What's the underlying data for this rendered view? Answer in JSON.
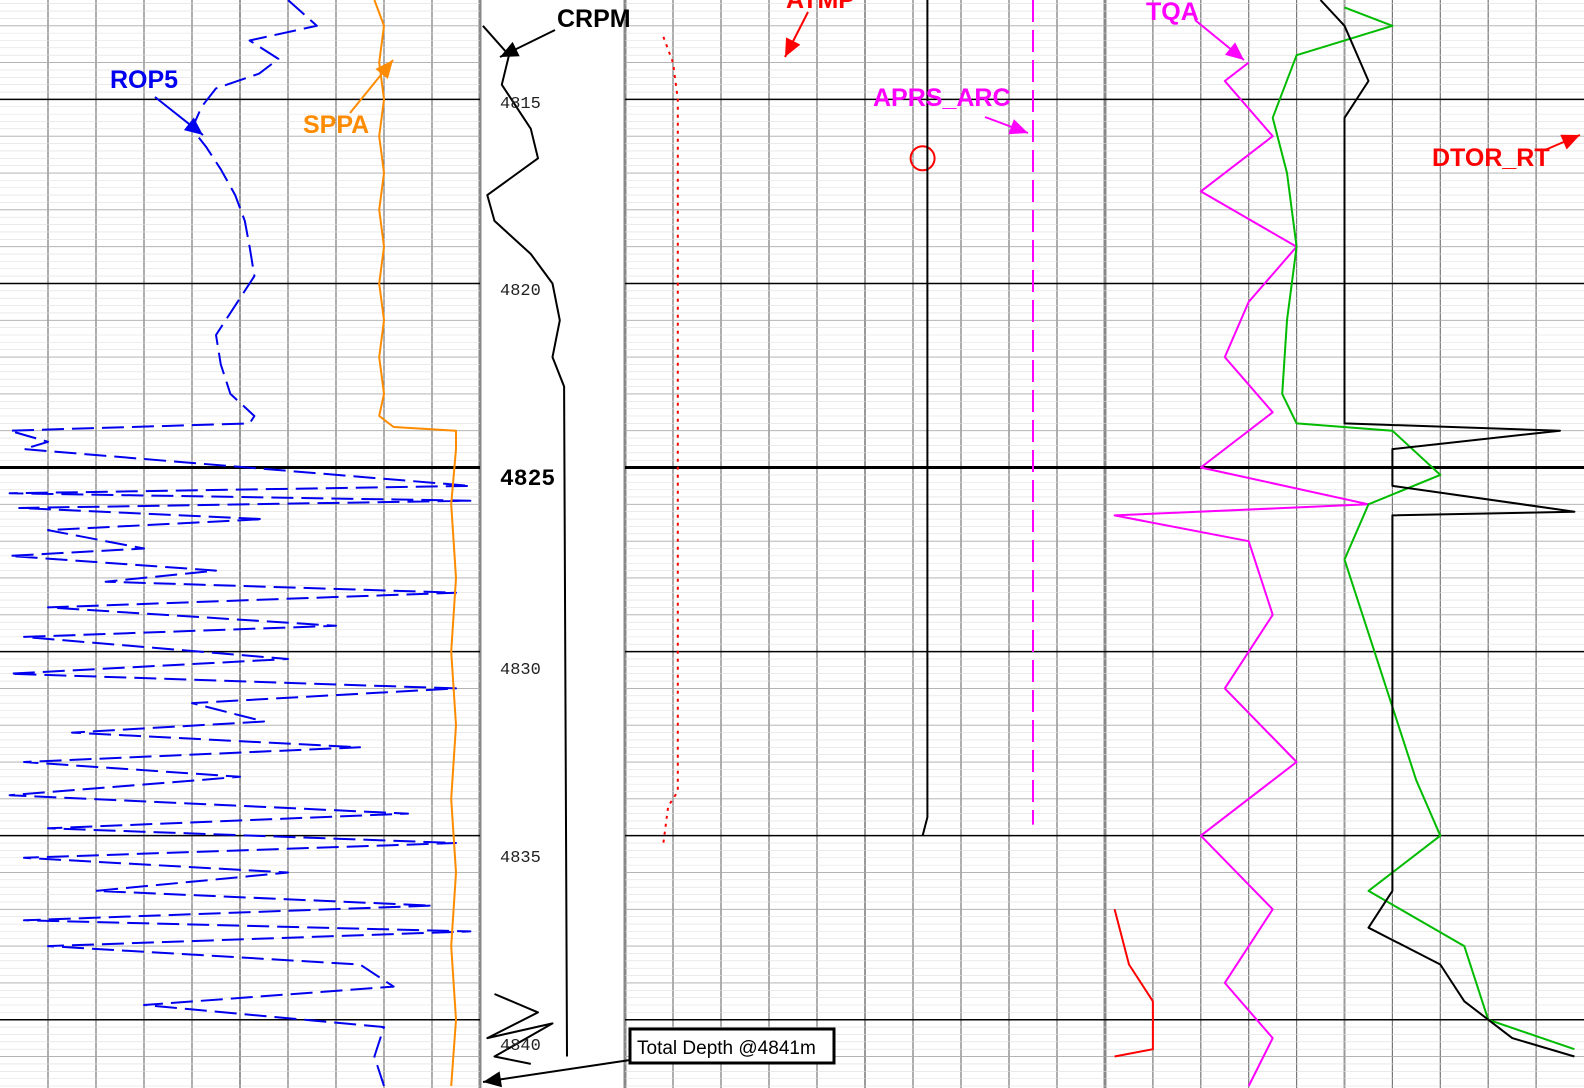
{
  "chart_data": {
    "type": "line",
    "title": "",
    "y_axis": {
      "quantity": "depth",
      "unit": "m",
      "range": [
        4812.3,
        4841.8
      ],
      "tick_labels": [
        "4815",
        "4820",
        "4825",
        "4830",
        "4835",
        "4840"
      ],
      "major_tick": "4825"
    },
    "grid": true,
    "colors": {
      "CRPM": "#000000",
      "ATMP": "#ff0000",
      "APRS_ARC": "#ff00ff",
      "TQA": "#ff00ff",
      "DTOR_RT": "#ff0000",
      "ROP5": "#0000ee",
      "SPPA": "#ff8c00"
    },
    "curve_labels": [
      "ROP5",
      "SPPA",
      "CRPM",
      "ATMP",
      "APRS_ARC",
      "TQA",
      "DTOR_RT"
    ],
    "annotation": {
      "text": "Total Depth @4841m",
      "depth": 4841
    },
    "series": [
      {
        "name": "ROP5",
        "track": 1,
        "style": "dashed",
        "points": [
          [
            0.6,
            4812.3
          ],
          [
            0.66,
            4813.0
          ],
          [
            0.52,
            4813.4
          ],
          [
            0.58,
            4813.9
          ],
          [
            0.54,
            4814.3
          ],
          [
            0.45,
            4814.7
          ],
          [
            0.42,
            4815.2
          ],
          [
            0.4,
            4815.8
          ],
          [
            0.43,
            4816.3
          ],
          [
            0.46,
            4816.9
          ],
          [
            0.49,
            4817.6
          ],
          [
            0.51,
            4818.3
          ],
          [
            0.52,
            4819.0
          ],
          [
            0.53,
            4819.8
          ],
          [
            0.49,
            4820.6
          ],
          [
            0.45,
            4821.4
          ],
          [
            0.46,
            4822.2
          ],
          [
            0.48,
            4823.0
          ],
          [
            0.53,
            4823.6
          ],
          [
            0.52,
            4823.8
          ],
          [
            0.02,
            4824.0
          ],
          [
            0.1,
            4824.3
          ],
          [
            0.05,
            4824.5
          ],
          [
            0.98,
            4825.5
          ],
          [
            0.02,
            4825.7
          ],
          [
            0.98,
            4825.9
          ],
          [
            0.04,
            4826.1
          ],
          [
            0.55,
            4826.4
          ],
          [
            0.1,
            4826.7
          ],
          [
            0.3,
            4827.2
          ],
          [
            0.02,
            4827.4
          ],
          [
            0.45,
            4827.8
          ],
          [
            0.22,
            4828.1
          ],
          [
            0.95,
            4828.4
          ],
          [
            0.1,
            4828.8
          ],
          [
            0.7,
            4829.3
          ],
          [
            0.05,
            4829.6
          ],
          [
            0.6,
            4830.2
          ],
          [
            0.02,
            4830.6
          ],
          [
            0.95,
            4831.0
          ],
          [
            0.4,
            4831.4
          ],
          [
            0.55,
            4831.9
          ],
          [
            0.15,
            4832.2
          ],
          [
            0.75,
            4832.6
          ],
          [
            0.05,
            4833.0
          ],
          [
            0.5,
            4833.4
          ],
          [
            0.02,
            4833.9
          ],
          [
            0.85,
            4834.4
          ],
          [
            0.1,
            4834.8
          ],
          [
            0.95,
            4835.2
          ],
          [
            0.05,
            4835.6
          ],
          [
            0.6,
            4836.0
          ],
          [
            0.2,
            4836.5
          ],
          [
            0.9,
            4836.9
          ],
          [
            0.05,
            4837.3
          ],
          [
            0.98,
            4837.6
          ],
          [
            0.1,
            4838.0
          ],
          [
            0.75,
            4838.5
          ],
          [
            0.82,
            4839.1
          ],
          [
            0.3,
            4839.6
          ],
          [
            0.8,
            4840.2
          ],
          [
            0.78,
            4841.0
          ],
          [
            0.8,
            4841.8
          ]
        ]
      },
      {
        "name": "SPPA",
        "track": 1,
        "style": "solid",
        "points": [
          [
            0.78,
            4812.3
          ],
          [
            0.8,
            4813.0
          ],
          [
            0.79,
            4814.0
          ],
          [
            0.8,
            4815.0
          ],
          [
            0.79,
            4816.0
          ],
          [
            0.8,
            4817.0
          ],
          [
            0.79,
            4818.0
          ],
          [
            0.8,
            4819.0
          ],
          [
            0.79,
            4820.0
          ],
          [
            0.8,
            4821.0
          ],
          [
            0.79,
            4822.0
          ],
          [
            0.8,
            4823.0
          ],
          [
            0.79,
            4823.6
          ],
          [
            0.82,
            4823.9
          ],
          [
            0.95,
            4824.0
          ],
          [
            0.95,
            4824.5
          ],
          [
            0.94,
            4826.0
          ],
          [
            0.95,
            4828.0
          ],
          [
            0.94,
            4830.0
          ],
          [
            0.95,
            4832.0
          ],
          [
            0.94,
            4834.0
          ],
          [
            0.95,
            4836.0
          ],
          [
            0.94,
            4838.0
          ],
          [
            0.95,
            4840.0
          ],
          [
            0.94,
            4841.8
          ]
        ]
      },
      {
        "name": "CRPM",
        "track": 2,
        "style": "solid",
        "points": [
          [
            0.02,
            4813.0
          ],
          [
            0.2,
            4813.8
          ],
          [
            0.15,
            4814.6
          ],
          [
            0.35,
            4815.8
          ],
          [
            0.4,
            4816.6
          ],
          [
            0.05,
            4817.6
          ],
          [
            0.1,
            4818.3
          ],
          [
            0.35,
            4819.2
          ],
          [
            0.5,
            4820.0
          ],
          [
            0.55,
            4821.0
          ],
          [
            0.5,
            4822.0
          ],
          [
            0.58,
            4822.8
          ],
          [
            0.6,
            4841.0
          ]
        ]
      },
      {
        "name": "CRPM_deep",
        "track": 2,
        "style": "solid",
        "points": [
          [
            0.1,
            4839.3
          ],
          [
            0.4,
            4839.8
          ],
          [
            0.05,
            4840.5
          ],
          [
            0.5,
            4840.1
          ],
          [
            0.1,
            4841.0
          ],
          [
            0.35,
            4841.2
          ]
        ]
      },
      {
        "name": "ATMP",
        "track": 3,
        "style": "dotted",
        "points": [
          [
            0.08,
            4813.3
          ],
          [
            0.1,
            4814.0
          ],
          [
            0.11,
            4815.0
          ],
          [
            0.11,
            4820.0
          ],
          [
            0.11,
            4825.0
          ],
          [
            0.11,
            4831.0
          ],
          [
            0.11,
            4833.8
          ],
          [
            0.09,
            4834.2
          ],
          [
            0.08,
            4835.2
          ]
        ]
      },
      {
        "name": "CIRCLE_MARK",
        "track": 3,
        "style": "circle",
        "points": [
          [
            0.62,
            4816.6
          ]
        ]
      },
      {
        "name": "TRACK3_BLACK",
        "track": 3,
        "style": "solid",
        "points": [
          [
            0.63,
            4812.3
          ],
          [
            0.63,
            4826.0
          ],
          [
            0.63,
            4834.5
          ],
          [
            0.62,
            4835.0
          ]
        ]
      },
      {
        "name": "APRS_ARC",
        "track": 3,
        "style": "dashed",
        "points": [
          [
            0.85,
            4812.3
          ],
          [
            0.85,
            4820.0
          ],
          [
            0.85,
            4834.7
          ]
        ]
      },
      {
        "name": "TQA",
        "track": 4,
        "style": "solid",
        "points": [
          [
            0.3,
            4814.0
          ],
          [
            0.25,
            4814.5
          ],
          [
            0.35,
            4816.0
          ],
          [
            0.2,
            4817.5
          ],
          [
            0.4,
            4819.0
          ],
          [
            0.3,
            4820.5
          ],
          [
            0.25,
            4822.0
          ],
          [
            0.35,
            4823.5
          ],
          [
            0.2,
            4825.0
          ],
          [
            0.55,
            4826.0
          ],
          [
            0.02,
            4826.3
          ],
          [
            0.3,
            4827.0
          ],
          [
            0.35,
            4829.0
          ],
          [
            0.25,
            4831.0
          ],
          [
            0.4,
            4833.0
          ],
          [
            0.2,
            4835.0
          ],
          [
            0.35,
            4837.0
          ],
          [
            0.25,
            4839.0
          ],
          [
            0.35,
            4840.5
          ],
          [
            0.3,
            4841.8
          ]
        ]
      },
      {
        "name": "TRACK4_GREEN",
        "track": 4,
        "style": "solid",
        "points": [
          [
            0.5,
            4812.5
          ],
          [
            0.6,
            4813.0
          ],
          [
            0.4,
            4813.8
          ],
          [
            0.35,
            4815.5
          ],
          [
            0.38,
            4817.0
          ],
          [
            0.4,
            4819.0
          ],
          [
            0.38,
            4821.0
          ],
          [
            0.37,
            4823.0
          ],
          [
            0.4,
            4823.8
          ],
          [
            0.6,
            4824.0
          ],
          [
            0.7,
            4825.2
          ],
          [
            0.55,
            4826.0
          ],
          [
            0.5,
            4827.5
          ],
          [
            0.55,
            4829.5
          ],
          [
            0.6,
            4831.5
          ],
          [
            0.65,
            4833.5
          ],
          [
            0.7,
            4835.0
          ],
          [
            0.55,
            4836.5
          ],
          [
            0.75,
            4838.0
          ],
          [
            0.8,
            4840.0
          ],
          [
            0.98,
            4840.8
          ]
        ]
      },
      {
        "name": "TRACK4_BLACK",
        "track": 4,
        "style": "solid",
        "points": [
          [
            0.45,
            4812.3
          ],
          [
            0.5,
            4813.0
          ],
          [
            0.55,
            4814.5
          ],
          [
            0.5,
            4815.5
          ],
          [
            0.5,
            4823.8
          ],
          [
            0.95,
            4824.0
          ],
          [
            0.6,
            4824.5
          ],
          [
            0.6,
            4825.5
          ],
          [
            0.98,
            4826.2
          ],
          [
            0.6,
            4826.3
          ],
          [
            0.6,
            4836.5
          ],
          [
            0.55,
            4837.5
          ],
          [
            0.7,
            4838.5
          ],
          [
            0.75,
            4839.5
          ],
          [
            0.85,
            4840.5
          ],
          [
            0.98,
            4841.0
          ]
        ]
      },
      {
        "name": "DTOR_RT",
        "track": 4,
        "style": "solid",
        "points": [
          [
            0.02,
            4837.0
          ],
          [
            0.05,
            4838.5
          ],
          [
            0.1,
            4839.5
          ],
          [
            0.1,
            4840.8
          ],
          [
            0.02,
            4841.0
          ]
        ]
      }
    ]
  }
}
